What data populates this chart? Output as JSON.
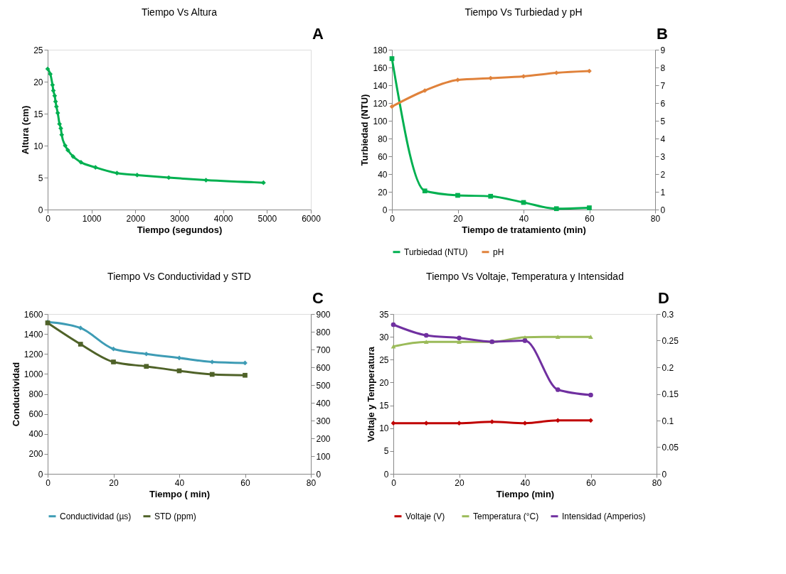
{
  "chart_data": [
    {
      "type": "line",
      "title": "Tiempo Vs Altura",
      "xlabel": "Tiempo (segundos)",
      "ylabel": "Altura (cm)",
      "annotations": [
        "A"
      ],
      "grid": false,
      "legend": false,
      "xlim": [
        0,
        6000
      ],
      "xticks": [
        0,
        1000,
        2000,
        3000,
        4000,
        5000,
        6000
      ],
      "ylim": [
        0,
        25
      ],
      "yticks": [
        0,
        5,
        10,
        15,
        20,
        25
      ],
      "series": [
        {
          "color": "#00b050",
          "marker": "diamond",
          "x": [
            0,
            60,
            110,
            130,
            160,
            180,
            200,
            230,
            270,
            300,
            320,
            400,
            460,
            580,
            760,
            1090,
            1580,
            2040,
            2760,
            3610,
            4920
          ],
          "values": [
            22.0,
            21.2,
            19.5,
            18.6,
            17.8,
            16.9,
            16.1,
            15.1,
            13.4,
            12.7,
            11.7,
            10.0,
            9.3,
            8.3,
            7.4,
            6.6,
            5.7,
            5.4,
            5.0,
            4.6,
            4.2
          ]
        }
      ]
    },
    {
      "type": "line",
      "title": "Tiempo Vs Turbiedad  y pH",
      "xlabel": "Tiempo de tratamiento (min)",
      "ylabel": "Turbiedad (NTU)",
      "annotations": [
        "B"
      ],
      "grid": false,
      "legend": "bottom",
      "xlim": [
        0,
        80
      ],
      "xticks": [
        0,
        20,
        40,
        60,
        80
      ],
      "ylim": [
        0,
        180
      ],
      "yticks": [
        0,
        20,
        40,
        60,
        80,
        100,
        120,
        140,
        160,
        180
      ],
      "y2lim": [
        0,
        9
      ],
      "y2ticks": [
        0,
        1,
        2,
        3,
        4,
        5,
        6,
        7,
        8,
        9
      ],
      "x": [
        0,
        10,
        20,
        30,
        40,
        50,
        60
      ],
      "series": [
        {
          "name": "Turbiedad  (NTU)",
          "color": "#00b050",
          "marker": "square",
          "values": [
            170,
            21,
            16,
            15,
            8,
            1,
            2
          ]
        },
        {
          "name": "pH",
          "color": "#e0823b",
          "marker": "diamond",
          "axis": "y2",
          "values": [
            5.8,
            6.7,
            7.3,
            7.4,
            7.5,
            7.7,
            7.8
          ]
        }
      ]
    },
    {
      "type": "line",
      "title": "Tiempo Vs Conductividad y STD",
      "xlabel": "Tiempo ( min)",
      "ylabel": "Conductividad",
      "annotations": [
        "C"
      ],
      "grid": false,
      "legend": "bottom",
      "xlim": [
        0,
        80
      ],
      "xticks": [
        0,
        20,
        40,
        60,
        80
      ],
      "ylim": [
        0,
        1600
      ],
      "yticks": [
        0,
        200,
        400,
        600,
        800,
        1000,
        1200,
        1400,
        1600
      ],
      "y2lim": [
        0,
        900
      ],
      "y2ticks": [
        0,
        100,
        200,
        300,
        400,
        500,
        600,
        700,
        800,
        900
      ],
      "x": [
        0,
        10,
        20,
        30,
        40,
        50,
        60
      ],
      "series": [
        {
          "name": "Conductividad (µs)",
          "color": "#3e9cb5",
          "marker": "diamond",
          "values": [
            1520,
            1460,
            1250,
            1200,
            1160,
            1120,
            1110
          ]
        },
        {
          "name": "STD (ppm)",
          "color": "#4f6228",
          "marker": "square",
          "axis": "y2",
          "values": [
            850,
            730,
            630,
            605,
            580,
            560,
            555
          ]
        }
      ]
    },
    {
      "type": "line",
      "title": "Tiempo Vs Voltaje, Temperatura y Intensidad",
      "xlabel": "Tiempo (min)",
      "ylabel": "Voltaje y Temperatura",
      "annotations": [
        "D"
      ],
      "grid": false,
      "legend": "bottom",
      "xlim": [
        0,
        80
      ],
      "xticks": [
        0,
        20,
        40,
        60,
        80
      ],
      "ylim": [
        0,
        35
      ],
      "yticks": [
        0,
        5,
        10,
        15,
        20,
        25,
        30,
        35
      ],
      "y2lim": [
        0,
        0.3
      ],
      "y2ticks": [
        0,
        0.05,
        0.1,
        0.15,
        0.2,
        0.25,
        0.3
      ],
      "x": [
        0,
        10,
        20,
        30,
        40,
        50,
        60
      ],
      "series": [
        {
          "name": "Voltaje   (V)",
          "color": "#c00000",
          "marker": "diamond",
          "values": [
            11.1,
            11.1,
            11.1,
            11.4,
            11.1,
            11.7,
            11.7
          ]
        },
        {
          "name": "Temperatura (°C)",
          "color": "#9bbb59",
          "marker": "triangle",
          "values": [
            27.9,
            28.9,
            28.9,
            28.9,
            29.9,
            30,
            30
          ]
        },
        {
          "name": "Intensidad (Amperios)",
          "color": "#7030a0",
          "marker": "circle",
          "axis": "y2",
          "values": [
            0.28,
            0.26,
            0.255,
            0.248,
            0.25,
            0.158,
            0.148
          ]
        }
      ]
    }
  ]
}
